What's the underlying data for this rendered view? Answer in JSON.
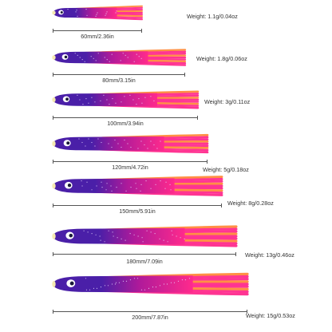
{
  "colors": {
    "body": "#4a1fa8",
    "body_dark": "#2a0f6e",
    "skirt_pink": "#ff2a8c",
    "skirt_orange": "#ff8a3a",
    "eye": "#ffffff",
    "pupil": "#1a1a3a",
    "tip": "#f4e9b0"
  },
  "lures": [
    {
      "length": "60mm/2.36in",
      "weight": "Weight: 1.1g/0.04oz"
    },
    {
      "length": "80mm/3.15in",
      "weight": "Weight: 1.8g/0.06oz"
    },
    {
      "length": "100mm/3.94in",
      "weight": "Weight: 3g/0.11oz"
    },
    {
      "length": "120mm/4.72in",
      "weight": "Weight: 5g/0.18oz"
    },
    {
      "length": "150mm/5.91in",
      "weight": "Weight: 8g/0.28oz"
    },
    {
      "length": "180mm/7.09in",
      "weight": "Weight: 13g/0.46oz"
    },
    {
      "length": "200mm/7.87in",
      "weight": "Weight: 15g/0.53oz"
    }
  ]
}
